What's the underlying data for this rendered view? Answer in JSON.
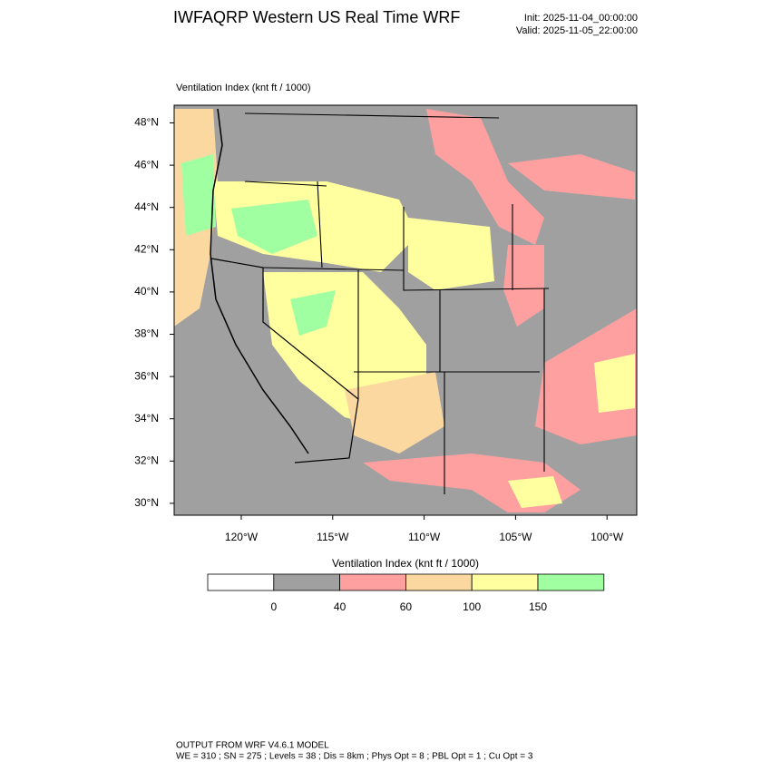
{
  "header": {
    "title": "IWFAQRP Western US Real Time WRF",
    "init": "Init: 2025-11-04_00:00:00",
    "valid": "Valid: 2025-11-05_22:00:00"
  },
  "map": {
    "label": "Ventilation Index   (knt ft / 1000)",
    "lat_labels": [
      "48°N",
      "46°N",
      "44°N",
      "42°N",
      "40°N",
      "38°N",
      "36°N",
      "34°N",
      "32°N",
      "30°N"
    ],
    "lon_labels": [
      "120°W",
      "115°W",
      "110°W",
      "105°W",
      "100°W"
    ]
  },
  "colorbar": {
    "title": "Ventilation Index  (knt ft / 1000)",
    "levels": [
      0,
      40,
      60,
      100,
      150
    ],
    "colors": [
      "#ffffff",
      "#a0a0a0",
      "#ffa0a0",
      "#fad8a0",
      "#ffffa0",
      "#a0ffa0"
    ]
  },
  "footer": {
    "line1": "OUTPUT FROM WRF V4.6.1 MODEL",
    "line2": "WE = 310 ; SN = 275 ; Levels = 38 ; Dis = 8km ; Phys Opt = 8 ; PBL Opt = 1 ; Cu Opt = 3"
  }
}
